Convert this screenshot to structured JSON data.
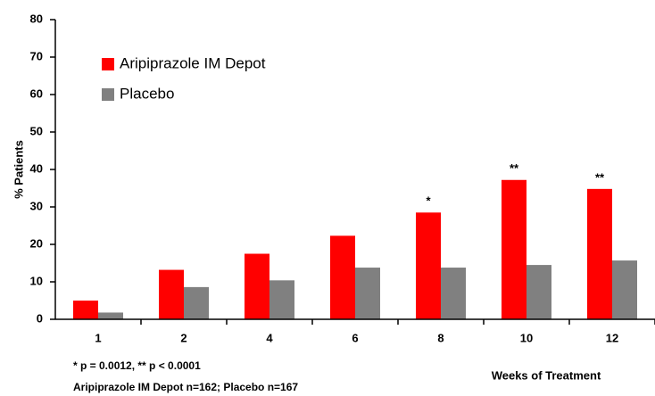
{
  "chart_data": {
    "type": "bar",
    "categories": [
      "1",
      "2",
      "4",
      "6",
      "8",
      "10",
      "12"
    ],
    "series": [
      {
        "name": "Aripiprazole IM Depot",
        "color": "#ff0000",
        "values": [
          5,
          13.2,
          17.5,
          22.3,
          28.5,
          37.2,
          34.8
        ]
      },
      {
        "name": "Placebo",
        "color": "#808080",
        "values": [
          1.8,
          8.6,
          10.4,
          13.8,
          13.8,
          14.5,
          15.7
        ]
      }
    ],
    "significance": [
      null,
      null,
      null,
      null,
      "*",
      "**",
      "**"
    ],
    "ylim": [
      0,
      80
    ],
    "yticks": [
      0,
      10,
      20,
      30,
      40,
      50,
      60,
      70,
      80
    ],
    "ylabel": "% Patients",
    "xlabel": "Weeks of Treatment",
    "legend": "upper left",
    "footnotes": [
      "* p = 0.0012, ** p < 0.0001",
      "Aripiprazole IM Depot n=162; Placebo n=167"
    ]
  }
}
